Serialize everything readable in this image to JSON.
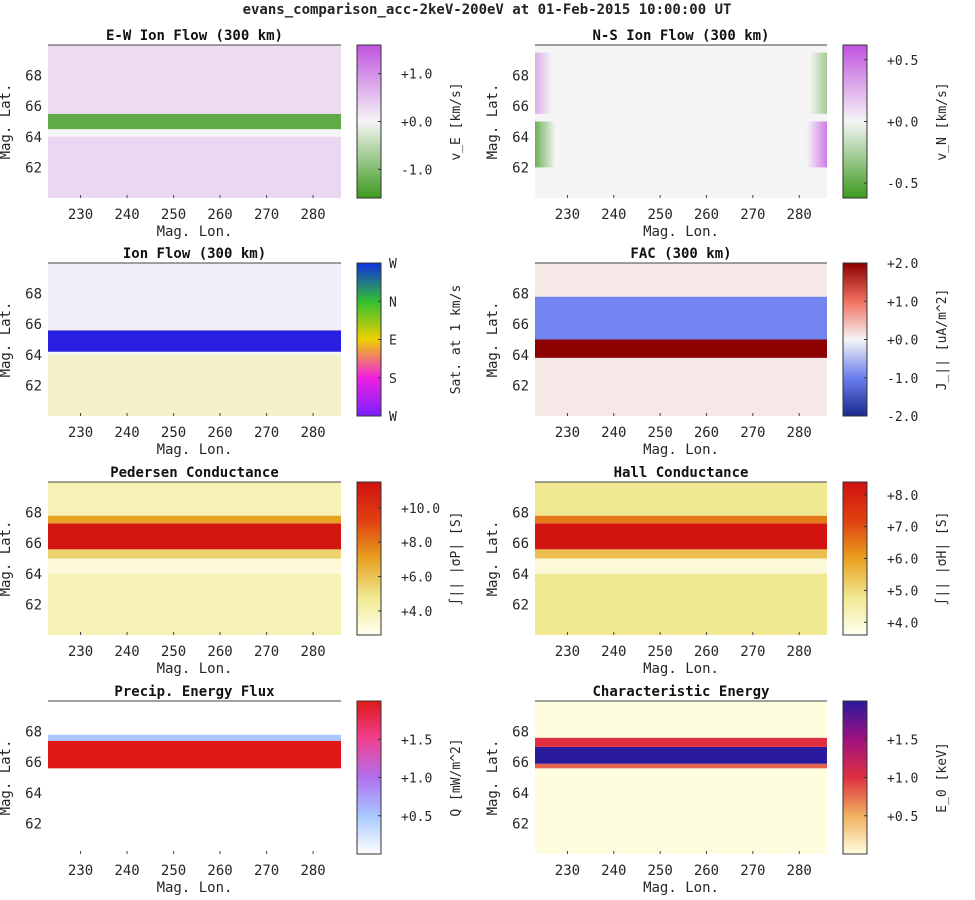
{
  "figure": {
    "title": "evans_comparison_acc-2keV-200eV at 01-Feb-2015 10:00:00 UT"
  },
  "chart_data": [
    {
      "id": "ew-flow",
      "type": "heatmap",
      "title": "E-W Ion Flow (300 km)",
      "xlabel": "Mag. Lon.",
      "ylabel": "Mag. Lat.",
      "xlim": [
        223,
        286
      ],
      "ylim": [
        60,
        70
      ],
      "xticks": [
        "230",
        "240",
        "250",
        "260",
        "270",
        "280"
      ],
      "yticks": [
        "62",
        "64",
        "66",
        "68"
      ],
      "colorbar": {
        "label": "v_E [km/s]",
        "ticks": [
          "+1.0",
          "+0.0",
          "-1.0"
        ],
        "tick_values": [
          1.0,
          0.0,
          -1.0
        ],
        "range": [
          -1.6,
          1.6
        ],
        "colormap": [
          "#3d9a1f",
          "#f5f5f5",
          "#c054e0"
        ]
      },
      "bands": [
        {
          "lat_min": 60.0,
          "lat_max": 64.0,
          "value": 0.3
        },
        {
          "lat_min": 64.5,
          "lat_max": 65.5,
          "value": -1.3
        },
        {
          "lat_min": 65.5,
          "lat_max": 70.0,
          "value": 0.25
        }
      ]
    },
    {
      "id": "ns-flow",
      "type": "heatmap",
      "title": "N-S Ion Flow (300 km)",
      "xlabel": "Mag. Lon.",
      "ylabel": "Mag. Lat.",
      "xlim": [
        223,
        286
      ],
      "ylim": [
        60,
        70
      ],
      "xticks": [
        "230",
        "240",
        "250",
        "260",
        "270",
        "280"
      ],
      "yticks": [
        "62",
        "64",
        "66",
        "68"
      ],
      "colorbar": {
        "label": "v_N [km/s]",
        "ticks": [
          "+0.5",
          "+0.0",
          "-0.5"
        ],
        "tick_values": [
          0.5,
          0.0,
          -0.5
        ],
        "range": [
          -0.62,
          0.62
        ],
        "colormap": [
          "#3d9a1f",
          "#f5f5f5",
          "#c054e0"
        ]
      },
      "bands": [
        {
          "lat_min": 60.0,
          "lat_max": 70.0,
          "value": 0.0
        }
      ]
    },
    {
      "id": "ion-flow",
      "type": "heatmap",
      "title": "Ion Flow (300 km)",
      "xlabel": "Mag. Lon.",
      "ylabel": "Mag. Lat.",
      "xlim": [
        223,
        286
      ],
      "ylim": [
        60,
        70
      ],
      "xticks": [
        "230",
        "240",
        "250",
        "260",
        "270",
        "280"
      ],
      "yticks": [
        "62",
        "64",
        "66",
        "68"
      ],
      "colorbar": {
        "label": "Sat. at 1 km/s",
        "ticks": [
          "W",
          "N",
          "E",
          "S",
          "W"
        ],
        "colormap": [
          "#7a1fff",
          "#f020e0",
          "#f0d000",
          "#30c030",
          "#1030e0"
        ]
      },
      "bands": [
        {
          "lat_min": 60.0,
          "lat_max": 64.0,
          "color": "#f3f1c8"
        },
        {
          "lat_min": 64.2,
          "lat_max": 65.6,
          "color": "#2a1ee0"
        },
        {
          "lat_min": 65.6,
          "lat_max": 70.0,
          "color": "#f2eef7"
        }
      ]
    },
    {
      "id": "fac",
      "type": "heatmap",
      "title": "FAC (300 km)",
      "xlabel": "Mag. Lon.",
      "ylabel": "Mag. Lat.",
      "xlim": [
        223,
        286
      ],
      "ylim": [
        60,
        70
      ],
      "xticks": [
        "230",
        "240",
        "250",
        "260",
        "270",
        "280"
      ],
      "yticks": [
        "62",
        "64",
        "66",
        "68"
      ],
      "colorbar": {
        "label": "J_|| [uA/m^2]",
        "ticks": [
          "+2.0",
          "+1.0",
          "+0.0",
          "-1.0",
          "-2.0"
        ],
        "tick_values": [
          2.0,
          1.0,
          0.0,
          -1.0,
          -2.0
        ],
        "range": [
          -2.0,
          2.0
        ],
        "colormap": [
          "#1a2b8c",
          "#6a7ef0",
          "#f5f5f5",
          "#f07060",
          "#8c0000"
        ]
      },
      "bands": [
        {
          "lat_min": 60.0,
          "lat_max": 63.8,
          "value": 0.1
        },
        {
          "lat_min": 63.8,
          "lat_max": 65.0,
          "value": 2.0
        },
        {
          "lat_min": 65.0,
          "lat_max": 67.8,
          "value": -0.95
        },
        {
          "lat_min": 67.8,
          "lat_max": 70.0,
          "value": 0.1
        }
      ]
    },
    {
      "id": "pedersen",
      "type": "heatmap",
      "title": "Pedersen Conductance",
      "xlabel": "Mag. Lon.",
      "ylabel": "Mag. Lat.",
      "xlim": [
        223,
        286
      ],
      "ylim": [
        60,
        70
      ],
      "xticks": [
        "230",
        "240",
        "250",
        "260",
        "270",
        "280"
      ],
      "yticks": [
        "62",
        "64",
        "66",
        "68"
      ],
      "colorbar": {
        "label": "∫|| |σP| [S]",
        "ticks": [
          "+10.0",
          "+8.0",
          "+6.0",
          "+4.0"
        ],
        "tick_values": [
          10.0,
          8.0,
          6.0,
          4.0
        ],
        "range": [
          2.6,
          11.5
        ],
        "colormap": [
          "#fffff0",
          "#f0e890",
          "#e8a020",
          "#e04010",
          "#d01010"
        ]
      },
      "bands": [
        {
          "lat_min": 60.0,
          "lat_max": 64.0,
          "value": 4.0
        },
        {
          "lat_min": 64.0,
          "lat_max": 65.0,
          "value": 3.2
        },
        {
          "lat_min": 65.0,
          "lat_max": 65.6,
          "value": 5.5
        },
        {
          "lat_min": 65.6,
          "lat_max": 67.3,
          "value": 11.2
        },
        {
          "lat_min": 67.3,
          "lat_max": 67.8,
          "value": 7.0
        },
        {
          "lat_min": 67.8,
          "lat_max": 70.0,
          "value": 4.0
        }
      ]
    },
    {
      "id": "hall",
      "type": "heatmap",
      "title": "Hall Conductance",
      "xlabel": "Mag. Lon.",
      "ylabel": "Mag. Lat.",
      "xlim": [
        223,
        286
      ],
      "ylim": [
        60,
        70
      ],
      "xticks": [
        "230",
        "240",
        "250",
        "260",
        "270",
        "280"
      ],
      "yticks": [
        "62",
        "64",
        "66",
        "68"
      ],
      "colorbar": {
        "label": "∫|| |σH| [S]",
        "ticks": [
          "+8.0",
          "+7.0",
          "+6.0",
          "+5.0",
          "+4.0"
        ],
        "tick_values": [
          8.0,
          7.0,
          6.0,
          5.0,
          4.0
        ],
        "range": [
          3.6,
          8.4
        ],
        "colormap": [
          "#fffff0",
          "#f0e890",
          "#e8a020",
          "#e04010",
          "#d01010"
        ]
      },
      "bands": [
        {
          "lat_min": 60.0,
          "lat_max": 64.0,
          "value": 4.8
        },
        {
          "lat_min": 64.0,
          "lat_max": 65.0,
          "value": 3.9
        },
        {
          "lat_min": 65.0,
          "lat_max": 65.6,
          "value": 5.5
        },
        {
          "lat_min": 65.6,
          "lat_max": 67.3,
          "value": 8.3
        },
        {
          "lat_min": 67.3,
          "lat_max": 67.8,
          "value": 6.5
        },
        {
          "lat_min": 67.8,
          "lat_max": 70.0,
          "value": 4.8
        }
      ]
    },
    {
      "id": "energy-flux",
      "type": "heatmap",
      "title": "Precip. Energy Flux",
      "xlabel": "Mag. Lon.",
      "ylabel": "Mag. Lat.",
      "xlim": [
        223,
        286
      ],
      "ylim": [
        60,
        70
      ],
      "xticks": [
        "230",
        "240",
        "250",
        "260",
        "270",
        "280"
      ],
      "yticks": [
        "62",
        "64",
        "66",
        "68"
      ],
      "colorbar": {
        "label": "Q [mW/m^2]",
        "ticks": [
          "+1.5",
          "+1.0",
          "+0.5"
        ],
        "tick_values": [
          1.5,
          1.0,
          0.5
        ],
        "range": [
          0.0,
          2.0
        ],
        "colormap": [
          "#ffffff",
          "#a8c8ff",
          "#b070f0",
          "#f04090",
          "#e01818"
        ]
      },
      "bands": [
        {
          "lat_min": 60.0,
          "lat_max": 65.6,
          "value": 0.0
        },
        {
          "lat_min": 65.6,
          "lat_max": 67.4,
          "value": 2.0
        },
        {
          "lat_min": 67.4,
          "lat_max": 67.8,
          "value": 0.5
        },
        {
          "lat_min": 67.8,
          "lat_max": 70.0,
          "value": 0.0
        }
      ]
    },
    {
      "id": "char-energy",
      "type": "heatmap",
      "title": "Characteristic Energy",
      "xlabel": "Mag. Lon.",
      "ylabel": "Mag. Lat.",
      "xlim": [
        223,
        286
      ],
      "ylim": [
        60,
        70
      ],
      "xticks": [
        "230",
        "240",
        "250",
        "260",
        "270",
        "280"
      ],
      "yticks": [
        "62",
        "64",
        "66",
        "68"
      ],
      "colorbar": {
        "label": "E_0 [keV]",
        "ticks": [
          "+1.5",
          "+1.0",
          "+0.5"
        ],
        "tick_values": [
          1.5,
          1.0,
          0.5
        ],
        "range": [
          0.0,
          2.0
        ],
        "colormap": [
          "#fffde0",
          "#f0b060",
          "#e03040",
          "#a01080",
          "#2a1a9c"
        ]
      },
      "bands": [
        {
          "lat_min": 60.0,
          "lat_max": 65.6,
          "value": 0.0
        },
        {
          "lat_min": 65.6,
          "lat_max": 65.9,
          "value": 0.8
        },
        {
          "lat_min": 65.9,
          "lat_max": 67.0,
          "value": 2.0
        },
        {
          "lat_min": 67.0,
          "lat_max": 67.6,
          "value": 1.0
        },
        {
          "lat_min": 67.6,
          "lat_max": 70.0,
          "value": 0.0
        }
      ]
    }
  ]
}
